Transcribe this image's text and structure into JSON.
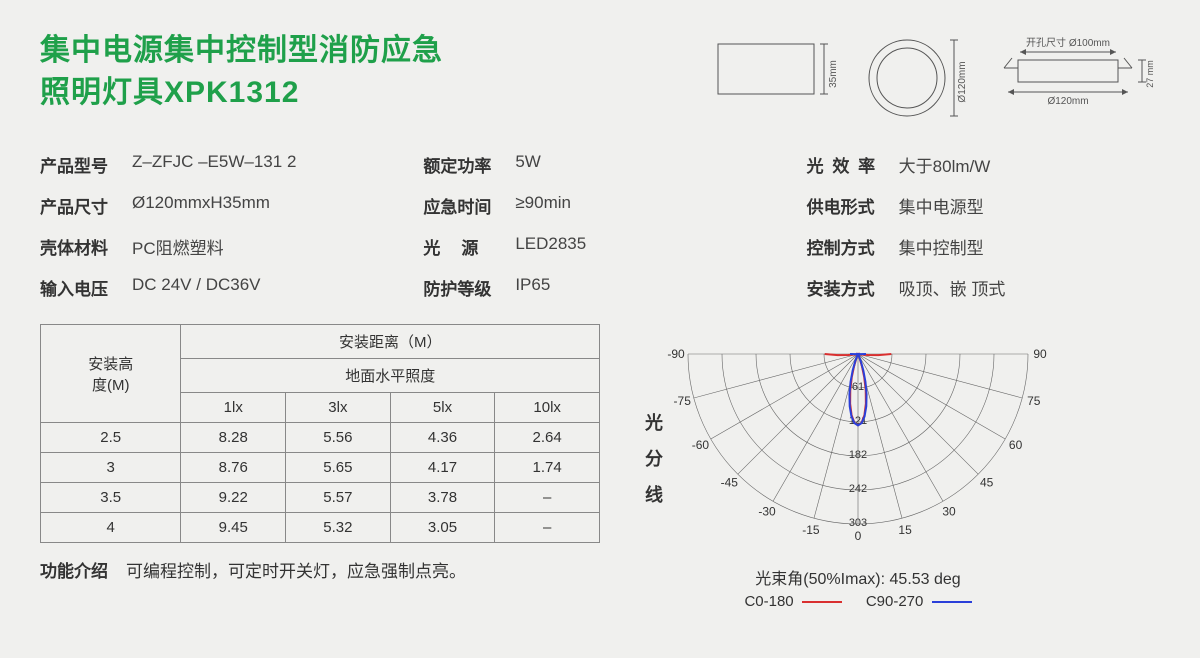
{
  "title_color": "#1fa04a",
  "title_line1": "集中电源集中控制型消防应急",
  "title_line2": "照明灯具XPK1312",
  "diagrams": {
    "side_height_label": "35mm",
    "top_diameter_label": "Ø120mm",
    "cutout_label": "开孔尺寸 Ø100mm",
    "recessed_width_label": "Ø120mm",
    "recessed_height_label": "27 mm"
  },
  "specs": [
    {
      "label": "产品型号",
      "value": "Z–ZFJC –E5W–131 2",
      "tight": true
    },
    {
      "label": "额定功率",
      "value": "5W",
      "tight": true
    },
    {
      "label": "光 效 率",
      "value": "大于80lm/W",
      "tight": false
    },
    {
      "label": "产品尺寸",
      "value": "Ø120mmxH35mm",
      "tight": true
    },
    {
      "label": "应急时间",
      "value": "≥90min",
      "tight": true
    },
    {
      "label": "供电形式",
      "value": "集中电源型",
      "tight": true
    },
    {
      "label": "壳体材料",
      "value": "PC阻燃塑料",
      "tight": true
    },
    {
      "label": "光　源",
      "value": "LED2835",
      "tight": false
    },
    {
      "label": "控制方式",
      "value": "集中控制型",
      "tight": true
    },
    {
      "label": "输入电压",
      "value": "DC 24V / DC36V",
      "tight": true
    },
    {
      "label": "防护等级",
      "value": "IP65",
      "tight": true
    },
    {
      "label": "安装方式",
      "value": "吸顶、嵌 顶式",
      "tight": true
    }
  ],
  "table": {
    "row_header": "安装高\n度(M)",
    "group_header": "安装距离（M）",
    "sub_header": "地面水平照度",
    "cols": [
      "1lx",
      "3lx",
      "5lx",
      "10lx"
    ],
    "rows": [
      {
        "h": "2.5",
        "v": [
          "8.28",
          "5.56",
          "4.36",
          "2.64"
        ]
      },
      {
        "h": "3",
        "v": [
          "8.76",
          "5.65",
          "4.17",
          "1.74"
        ]
      },
      {
        "h": "3.5",
        "v": [
          "9.22",
          "5.57",
          "3.78",
          "–"
        ]
      },
      {
        "h": "4",
        "v": [
          "9.45",
          "5.32",
          "3.05",
          "–"
        ]
      }
    ]
  },
  "intro_label": "功能介绍",
  "intro_text": "可编程控制，可定时开关灯，应急强制点亮。",
  "polar": {
    "side_label": "光分线",
    "angle_labels": [
      "-90",
      "-75",
      "-60",
      "-45",
      "-30",
      "-15",
      "0",
      "15",
      "30",
      "45",
      "60",
      "75",
      "90"
    ],
    "ring_labels": [
      "61",
      "121",
      "182",
      "242",
      "303"
    ],
    "beam_caption": "光束角(50%Imax): 45.53 deg",
    "legend": [
      {
        "name": "C0-180",
        "color": "#d92f2f"
      },
      {
        "name": "C90-270",
        "color": "#2a3fd9"
      }
    ],
    "c0_color": "#d92f2f",
    "c90_color": "#2a3fd9",
    "grid_color": "#666"
  }
}
